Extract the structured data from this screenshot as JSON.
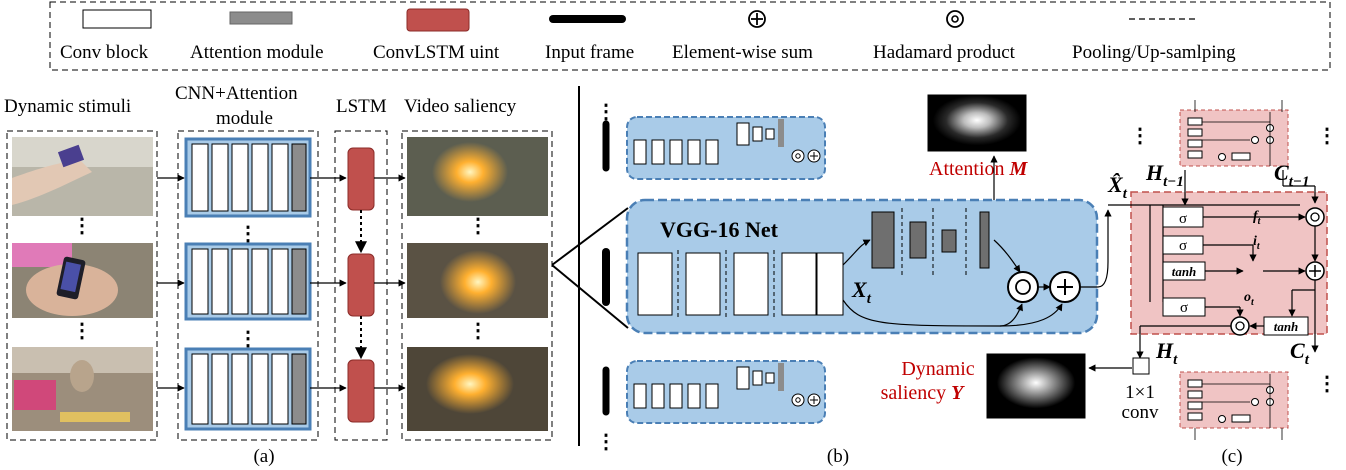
{
  "legend": {
    "conv_block": "Conv block",
    "attention_module": "Attention module",
    "convlstm_unit": "ConvLSTM uint",
    "input_frame": "Input frame",
    "element_sum": "Element-wise sum",
    "hadamard": "Hadamard product",
    "pooling": "Pooling/Up-samlping"
  },
  "panel_a": {
    "col_stimuli": "Dynamic stimuli",
    "col_cnn_line1": "CNN+Attention",
    "col_cnn_line2": "module",
    "col_lstm": "LSTM",
    "col_saliency": "Video saliency",
    "caption": "(a)"
  },
  "panel_b": {
    "vgg_label": "VGG-16 Net",
    "x_main": "X",
    "x_sub": "t",
    "attention_label": "Attention ",
    "attention_symbol": "M",
    "dyn_line1": "Dynamic",
    "dyn_line2": "saliency ",
    "dyn_symbol": "Y",
    "caption": "(b)"
  },
  "panel_c": {
    "xhat_main": "X̂",
    "xhat_sub": "t",
    "h_prev_main": "H",
    "h_prev_sub": "t−1",
    "c_prev_main": "C",
    "c_prev_sub": "t−1",
    "h_main": "H",
    "h_sub": "t",
    "c_main": "C",
    "c_sub": "t",
    "sigma": "σ",
    "tanh": "tanh",
    "f_main": "f",
    "f_sub": "t",
    "i_main": "i",
    "i_sub": "t",
    "o_main": "o",
    "o_sub": "t",
    "conv_line1": "1×1",
    "conv_line2": "conv",
    "caption": "(c)"
  },
  "colors": {
    "blue_fill": "#a9cbe8",
    "blue_stroke": "#4a7fb5",
    "red_unit": "#c0504d",
    "pink_fill": "#f0c4c4",
    "pink_stroke": "#c0504d",
    "label_red": "#c00000"
  }
}
